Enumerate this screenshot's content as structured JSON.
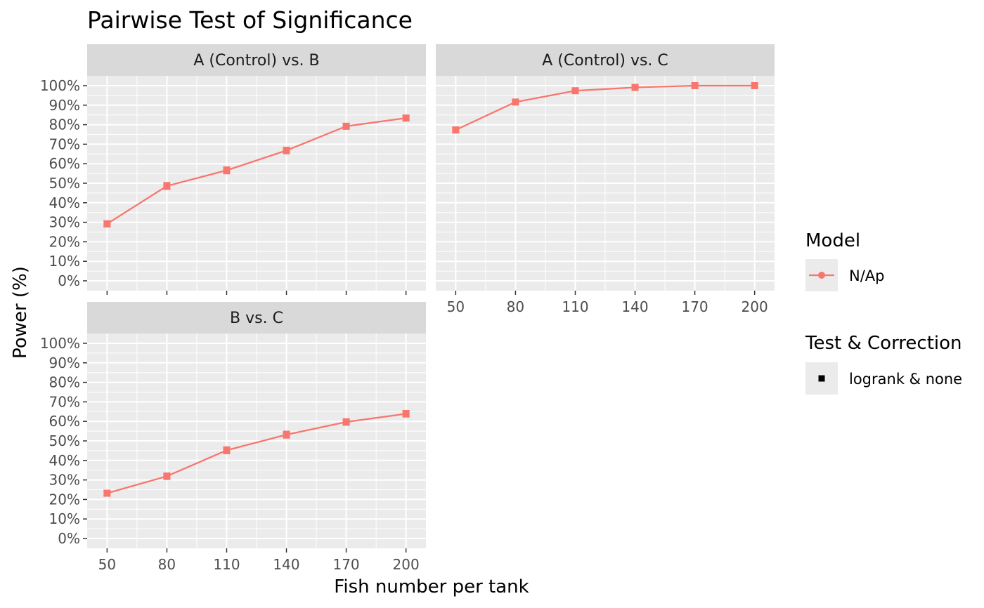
{
  "chart_data": {
    "type": "line",
    "title": "Pairwise Test of Significance",
    "xlabel": "Fish number per tank",
    "ylabel": "Power (%)",
    "x": [
      50,
      80,
      110,
      140,
      170,
      200
    ],
    "x_tick_labels": [
      "50",
      "80",
      "110",
      "140",
      "170",
      "200"
    ],
    "ylim": [
      0,
      100
    ],
    "y_tick_labels": [
      "0%",
      "10%",
      "20%",
      "30%",
      "40%",
      "50%",
      "60%",
      "70%",
      "80%",
      "90%",
      "100%"
    ],
    "grid": true,
    "line_color": "#F8766D",
    "panels": [
      {
        "label": "A (Control) vs. B",
        "values": [
          29.2,
          48.6,
          56.6,
          66.8,
          79.2,
          83.4
        ],
        "error": [
          1.4,
          1.6,
          1.6,
          1.5,
          1.3,
          1.2
        ]
      },
      {
        "label": "A (Control) vs. C",
        "values": [
          77.3,
          91.6,
          97.4,
          99.1,
          100.0,
          100.0
        ],
        "error": [
          1.3,
          0.9,
          0.5,
          0.3,
          0.0,
          0.0
        ]
      },
      {
        "label": "B vs. C",
        "values": [
          23.2,
          31.9,
          45.2,
          53.2,
          59.7,
          63.9
        ],
        "error": [
          1.3,
          1.5,
          1.6,
          1.6,
          1.5,
          1.5
        ]
      }
    ],
    "legend": {
      "placement": "right",
      "model_title": "Model",
      "model_label": "N/Ap",
      "test_title": "Test & Correction",
      "test_label": "logrank & none"
    }
  }
}
